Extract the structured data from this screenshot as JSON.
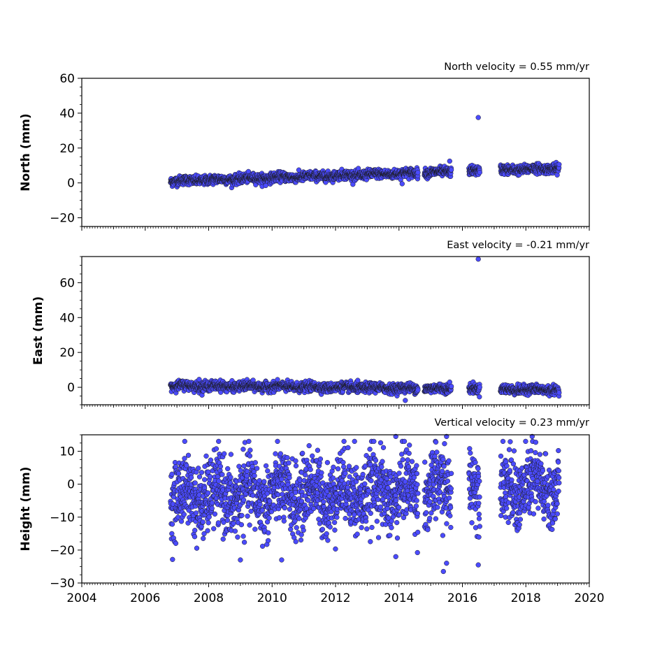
{
  "chart_data": [
    {
      "type": "scatter",
      "title": "North velocity = 0.55 mm/yr",
      "ylabel": "North (mm)",
      "xlabel": "",
      "xlim": [
        2004,
        2020
      ],
      "ylim": [
        -25,
        60
      ],
      "yticks": [
        "−20",
        "0",
        "20",
        "40",
        "60"
      ],
      "ytick_values": [
        -20,
        0,
        20,
        40,
        60
      ],
      "xtick_labels_shown": false,
      "marker_color": "#4b4bff",
      "marker_edge": "#1a1a1a",
      "series": [
        {
          "values_description": "daily GNSS north displacement",
          "trend": {
            "start": [
              2006.8,
              1
            ],
            "end": [
              2019.05,
              8.5
            ],
            "scatter": 1.3
          },
          "gaps": [
            [
              2014.6,
              2014.8
            ],
            [
              2015.65,
              2016.2
            ],
            [
              2016.55,
              2017.2
            ]
          ],
          "outliers": [
            [
              2016.5,
              37.5
            ],
            [
              2015.6,
              12.5
            ],
            [
              2009.8,
              -1.5
            ],
            [
              2014.1,
              -0.5
            ]
          ]
        }
      ]
    },
    {
      "type": "scatter",
      "title": "East velocity = -0.21 mm/yr",
      "ylabel": "East (mm)",
      "xlabel": "",
      "xlim": [
        2004,
        2020
      ],
      "ylim": [
        -10,
        75
      ],
      "yticks": [
        "0",
        "20",
        "40",
        "60"
      ],
      "ytick_values": [
        0,
        20,
        40,
        60
      ],
      "xtick_labels_shown": false,
      "marker_color": "#4b4bff",
      "marker_edge": "#1a1a1a",
      "series": [
        {
          "values_description": "daily GNSS east displacement",
          "trend": {
            "start": [
              2006.8,
              1
            ],
            "end": [
              2019.05,
              -1.5
            ],
            "scatter": 1.3
          },
          "gaps": [
            [
              2014.6,
              2014.8
            ],
            [
              2015.65,
              2016.2
            ],
            [
              2016.55,
              2017.2
            ]
          ],
          "outliers": [
            [
              2016.5,
              73.5
            ],
            [
              2007.7,
              4.5
            ],
            [
              2012.7,
              4
            ],
            [
              2014.2,
              -7.5
            ],
            [
              2015.6,
              3
            ]
          ]
        }
      ]
    },
    {
      "type": "scatter",
      "title": "Vertical velocity = 0.23 mm/yr",
      "ylabel": "Height (mm)",
      "xlabel": "",
      "xlim": [
        2004,
        2020
      ],
      "ylim": [
        -30,
        15
      ],
      "yticks": [
        "−30",
        "−20",
        "−10",
        "0",
        "10"
      ],
      "ytick_values": [
        -30,
        -20,
        -10,
        0,
        10
      ],
      "xticks": [
        "2004",
        "2006",
        "2008",
        "2010",
        "2012",
        "2014",
        "2016",
        "2018",
        "2020"
      ],
      "xtick_values": [
        2004,
        2006,
        2008,
        2010,
        2012,
        2014,
        2016,
        2018,
        2020
      ],
      "xtick_labels_shown": true,
      "marker_color": "#4b4bff",
      "marker_edge": "#1a1a1a",
      "series": [
        {
          "values_description": "daily GNSS vertical displacement",
          "trend": {
            "start": [
              2006.8,
              -4
            ],
            "end": [
              2019.05,
              -1
            ],
            "scatter": 5.5
          },
          "gaps": [
            [
              2014.6,
              2014.8
            ],
            [
              2015.65,
              2016.2
            ],
            [
              2016.55,
              2017.2
            ]
          ],
          "outliers": [
            [
              2012.6,
              13
            ],
            [
              2013.9,
              14.5
            ],
            [
              2015.5,
              14.5
            ],
            [
              2018.2,
              14.5
            ],
            [
              2015.4,
              -26.5
            ],
            [
              2015.5,
              -24
            ],
            [
              2016.5,
              -24.5
            ],
            [
              2013.9,
              -22
            ],
            [
              2009,
              -23
            ],
            [
              2010.3,
              -23
            ]
          ]
        }
      ]
    }
  ]
}
